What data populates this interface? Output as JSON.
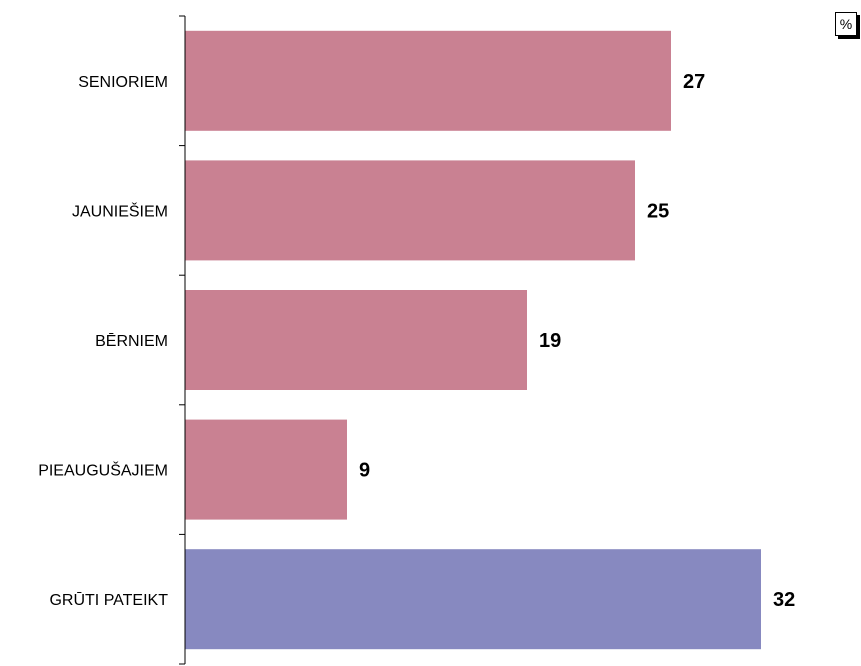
{
  "chart_data": {
    "type": "bar",
    "orientation": "horizontal",
    "unit": "%",
    "categories": [
      "SENIORIEM",
      "JAUNIEŠIEM",
      "BĒRNIEM",
      "PIEAUGUŠAJIEM",
      "GRŪTI PATEIKT"
    ],
    "values": [
      27,
      25,
      19,
      9,
      32
    ],
    "colors": [
      "#c98192",
      "#c98192",
      "#c98192",
      "#c98192",
      "#8789c0"
    ],
    "xlim": [
      0,
      40
    ],
    "grid": false,
    "legend": "none"
  }
}
